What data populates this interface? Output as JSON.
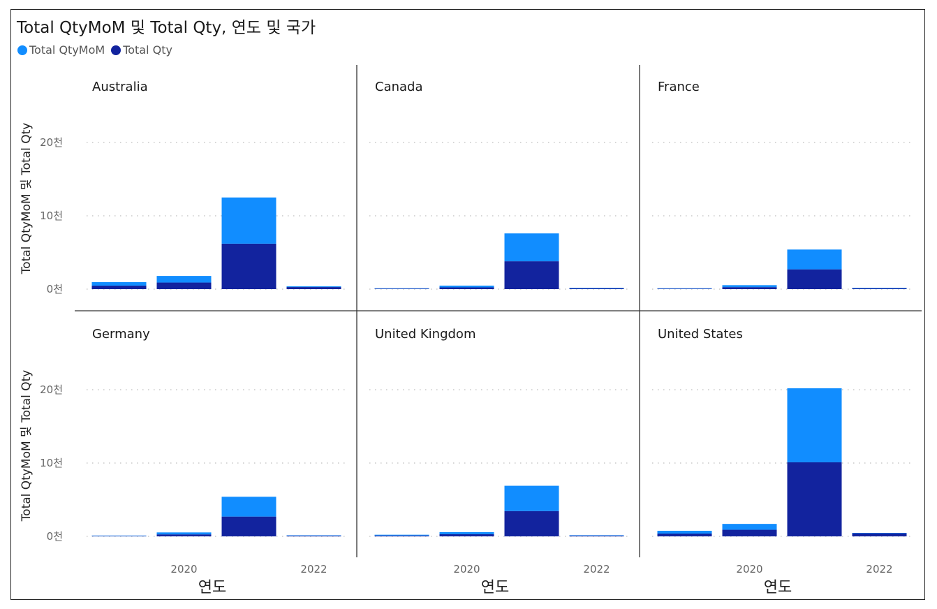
{
  "title": "Total QtyMoM 및 Total Qty, 연도 및 국가",
  "legend": [
    {
      "name": "Total QtyMoM",
      "color": "#118DFF"
    },
    {
      "name": "Total Qty",
      "color": "#12239E"
    }
  ],
  "colors": {
    "mom": "#118DFF",
    "qty": "#12239E",
    "grid": "#c8c8c8",
    "divider": "#333333"
  },
  "chart_data": {
    "type": "bar",
    "stacked": true,
    "facet_by": "국가",
    "xlabel": "연도",
    "ylabel": "Total QtyMoM 및 Total Qty",
    "x_ticks": [
      {
        "label": "2020",
        "year": 2020
      },
      {
        "label": "2022",
        "year": 2022
      }
    ],
    "y_ticks": [
      {
        "label": "0천",
        "value": 0
      },
      {
        "label": "10천",
        "value": 10000
      },
      {
        "label": "20천",
        "value": 20000
      }
    ],
    "ylim": [
      0,
      26000
    ],
    "years": [
      2019,
      2020,
      2021,
      2022
    ],
    "grid": true,
    "legend_position": "top-left",
    "panels": [
      {
        "country": "Australia",
        "series": [
          {
            "name": "Total Qty",
            "values": [
              480,
              900,
              6200,
              280
            ]
          },
          {
            "name": "Total QtyMoM",
            "values": [
              480,
              900,
              6300,
              100
            ]
          }
        ]
      },
      {
        "country": "Canada",
        "series": [
          {
            "name": "Total Qty",
            "values": [
              70,
              240,
              3800,
              120
            ]
          },
          {
            "name": "Total QtyMoM",
            "values": [
              50,
              240,
              3800,
              60
            ]
          }
        ]
      },
      {
        "country": "France",
        "series": [
          {
            "name": "Total Qty",
            "values": [
              70,
              270,
              2700,
              120
            ]
          },
          {
            "name": "Total QtyMoM",
            "values": [
              50,
              270,
              2700,
              60
            ]
          }
        ]
      },
      {
        "country": "Germany",
        "series": [
          {
            "name": "Total Qty",
            "values": [
              60,
              270,
              2700,
              100
            ]
          },
          {
            "name": "Total QtyMoM",
            "values": [
              50,
              270,
              2700,
              40
            ]
          }
        ]
      },
      {
        "country": "United Kingdom",
        "series": [
          {
            "name": "Total Qty",
            "values": [
              120,
              290,
              3450,
              110
            ]
          },
          {
            "name": "Total QtyMoM",
            "values": [
              100,
              290,
              3450,
              50
            ]
          }
        ]
      },
      {
        "country": "United States",
        "series": [
          {
            "name": "Total Qty",
            "values": [
              380,
              900,
              10100,
              460
            ]
          },
          {
            "name": "Total QtyMoM",
            "values": [
              380,
              800,
              10100,
              0
            ]
          }
        ]
      }
    ]
  }
}
